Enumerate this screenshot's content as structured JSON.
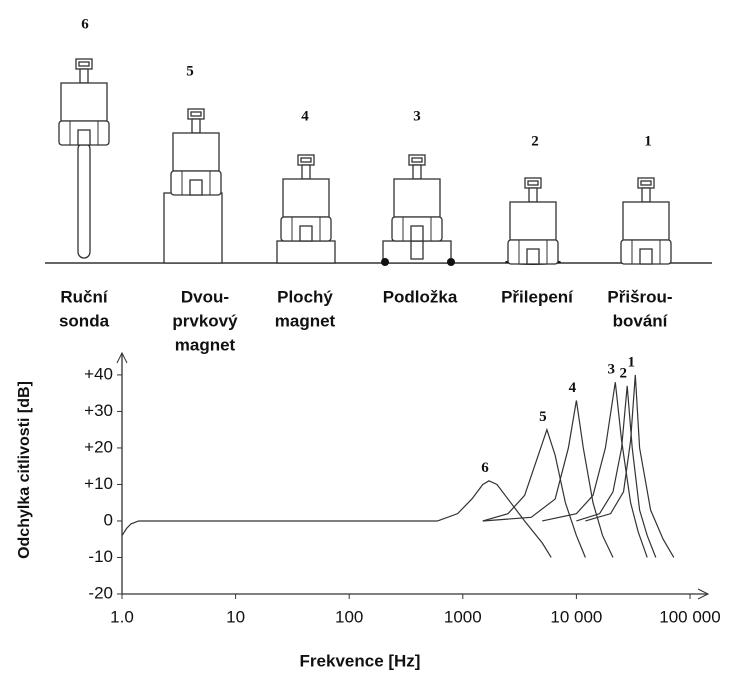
{
  "mountings": [
    {
      "number": "6",
      "label": [
        "Ruční",
        "sonda"
      ]
    },
    {
      "number": "5",
      "label": [
        "Dvou-",
        "prvkový",
        "magnet"
      ]
    },
    {
      "number": "4",
      "label": [
        "Plochý",
        "magnet"
      ]
    },
    {
      "number": "3",
      "label": [
        "Podložka"
      ]
    },
    {
      "number": "2",
      "label": [
        "Přilepení"
      ]
    },
    {
      "number": "1",
      "label": [
        "Přišrou-",
        "bování"
      ]
    }
  ],
  "chart_data": {
    "type": "line",
    "xlabel": "Frekvence [Hz]",
    "ylabel": "Odchylka citlivosti [dB]",
    "xlog": true,
    "color": "#333333",
    "xlim": [
      1,
      100000
    ],
    "ylim": [
      -20,
      46
    ],
    "xticks": [
      {
        "value": 1,
        "label": "1.0"
      },
      10,
      100,
      1000,
      {
        "value": 10000,
        "label": "10 000"
      },
      {
        "value": 100000,
        "label": "100 000"
      }
    ],
    "yticks": [
      {
        "value": 40,
        "label": "+40"
      },
      {
        "value": 30,
        "label": "+30"
      },
      {
        "value": 20,
        "label": "+20"
      },
      {
        "value": 10,
        "label": "+10"
      },
      0,
      -10,
      -20
    ],
    "series": [
      {
        "x": [
          1,
          1.1,
          1.2,
          1.4,
          2,
          100,
          600
        ],
        "values": [
          -4,
          -2,
          -0.8,
          0,
          0,
          0,
          0
        ]
      },
      {
        "name": "6",
        "x": [
          600,
          900,
          1200,
          1500,
          1700,
          2000,
          2500,
          3500,
          5000,
          6000
        ],
        "values": [
          0,
          2,
          6,
          10,
          11,
          10,
          6,
          0,
          -6,
          -10
        ]
      },
      {
        "name": "5",
        "x": [
          1500,
          2500,
          3500,
          4500,
          5500,
          6500,
          8000,
          10000,
          12000
        ],
        "values": [
          0,
          2,
          7,
          17,
          25,
          18,
          5,
          -4,
          -10
        ]
      },
      {
        "name": "4",
        "x": [
          1500,
          4000,
          6500,
          8500,
          10000,
          11500,
          14000,
          17000,
          21000
        ],
        "values": [
          0,
          1,
          6,
          20,
          33,
          20,
          5,
          -4,
          -10
        ]
      },
      {
        "name": "3",
        "x": [
          5000,
          10000,
          14000,
          18000,
          22000,
          25000,
          30000,
          35000,
          42000
        ],
        "values": [
          0,
          2,
          7,
          20,
          38,
          22,
          5,
          -3,
          -10
        ]
      },
      {
        "name": "2",
        "x": [
          10000,
          16000,
          21000,
          25000,
          28000,
          31000,
          36000,
          42000,
          50000
        ],
        "values": [
          0,
          2,
          8,
          20,
          37,
          20,
          3,
          -4,
          -10
        ]
      },
      {
        "name": "1",
        "x": [
          12000,
          20000,
          26000,
          30000,
          33000,
          36000,
          45000,
          58000,
          72000
        ],
        "values": [
          0,
          2,
          8,
          22,
          40,
          20,
          3,
          -5,
          -10
        ]
      }
    ]
  }
}
